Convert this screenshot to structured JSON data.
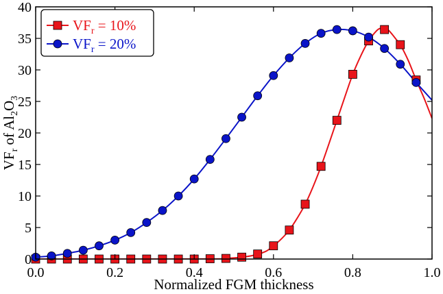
{
  "chart_data": {
    "type": "line",
    "xlabel": "Normalized FGM thickness",
    "ylabel": {
      "main": "VF",
      "sub": "r",
      "mid": " of Al",
      "sub2": "2",
      "mid2": "O",
      "sub3": "3"
    },
    "xlim": [
      0.0,
      1.0
    ],
    "ylim": [
      0,
      40
    ],
    "xticks": [
      "0.0",
      "0.2",
      "0.4",
      "0.6",
      "0.8",
      "1.0"
    ],
    "yticks": [
      "0",
      "5",
      "10",
      "15",
      "20",
      "25",
      "30",
      "35",
      "40"
    ],
    "grid": false,
    "legend_position": "top-left",
    "series": [
      {
        "name": "VF_r = 10%",
        "legend": {
          "main": "VF",
          "sub": "r",
          "rest": " = 10%"
        },
        "color": "#e8141a",
        "marker": "square",
        "x": [
          0.0,
          0.04,
          0.08,
          0.12,
          0.16,
          0.2,
          0.24,
          0.28,
          0.32,
          0.36,
          0.4,
          0.44,
          0.48,
          0.52,
          0.56,
          0.6,
          0.64,
          0.68,
          0.72,
          0.76,
          0.8,
          0.84,
          0.88,
          0.92,
          0.96
        ],
        "values": [
          0,
          0,
          0,
          0,
          0,
          0,
          0,
          0,
          0,
          0,
          0,
          0.05,
          0.1,
          0.3,
          0.8,
          2.1,
          4.6,
          8.7,
          14.7,
          22.0,
          29.3,
          34.6,
          36.4,
          34.0,
          28.4
        ],
        "curve_x": [
          0.0,
          0.44,
          0.48,
          0.52,
          0.55,
          0.58,
          0.6,
          0.62,
          0.64,
          0.66,
          0.68,
          0.7,
          0.72,
          0.74,
          0.76,
          0.78,
          0.8,
          0.82,
          0.84,
          0.86,
          0.87,
          0.88,
          0.89,
          0.9,
          0.91,
          0.92,
          0.94,
          0.96,
          0.98,
          1.0
        ],
        "curve_y": [
          0,
          0.02,
          0.1,
          0.3,
          0.6,
          1.2,
          2.1,
          3.2,
          4.6,
          6.5,
          8.7,
          11.5,
          14.7,
          18.3,
          22.0,
          25.7,
          29.3,
          32.2,
          34.6,
          36.2,
          36.6,
          36.6,
          36.3,
          35.6,
          34.8,
          34.0,
          31.5,
          28.4,
          25.5,
          22.3
        ]
      },
      {
        "name": "VF_r = 20%",
        "legend": {
          "main": "VF",
          "sub": "r",
          "rest": " = 20%"
        },
        "color": "#0a14c8",
        "marker": "circle",
        "x": [
          0.0,
          0.04,
          0.08,
          0.12,
          0.16,
          0.2,
          0.24,
          0.28,
          0.32,
          0.36,
          0.4,
          0.44,
          0.48,
          0.52,
          0.56,
          0.6,
          0.64,
          0.68,
          0.72,
          0.76,
          0.8,
          0.84,
          0.88,
          0.92,
          0.96
        ],
        "values": [
          0.3,
          0.5,
          0.9,
          1.4,
          2.1,
          3.0,
          4.2,
          5.8,
          7.7,
          10.0,
          12.7,
          15.8,
          19.1,
          22.5,
          25.9,
          29.1,
          31.9,
          34.2,
          35.8,
          36.4,
          36.2,
          35.2,
          33.4,
          30.9,
          28.0
        ],
        "curve_x": [
          0.0,
          0.04,
          0.08,
          0.12,
          0.16,
          0.2,
          0.24,
          0.28,
          0.32,
          0.36,
          0.4,
          0.44,
          0.48,
          0.52,
          0.56,
          0.6,
          0.64,
          0.68,
          0.72,
          0.76,
          0.8,
          0.84,
          0.88,
          0.92,
          0.96,
          1.0
        ],
        "curve_y": [
          0.3,
          0.5,
          0.9,
          1.4,
          2.1,
          3.0,
          4.2,
          5.8,
          7.7,
          10.0,
          12.7,
          15.8,
          19.1,
          22.5,
          25.9,
          29.1,
          31.9,
          34.2,
          35.8,
          36.4,
          36.2,
          35.2,
          33.4,
          30.9,
          28.0,
          25.2
        ]
      }
    ]
  }
}
